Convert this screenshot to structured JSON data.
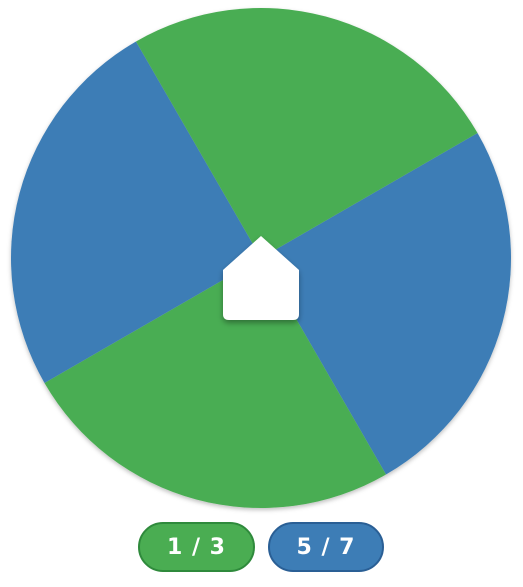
{
  "wheel": {
    "sector_count": 4,
    "colors": {
      "green": "#4aad52",
      "blue": "#3d7db6"
    },
    "sector_pattern": [
      "blue",
      "green",
      "blue",
      "green"
    ]
  },
  "pointer": {
    "icon": "home-pointer-icon",
    "color": "#ffffff"
  },
  "scores": [
    {
      "label": "1 / 3",
      "color": "#4aad52"
    },
    {
      "label": "5 / 7",
      "color": "#3d7db6"
    }
  ]
}
